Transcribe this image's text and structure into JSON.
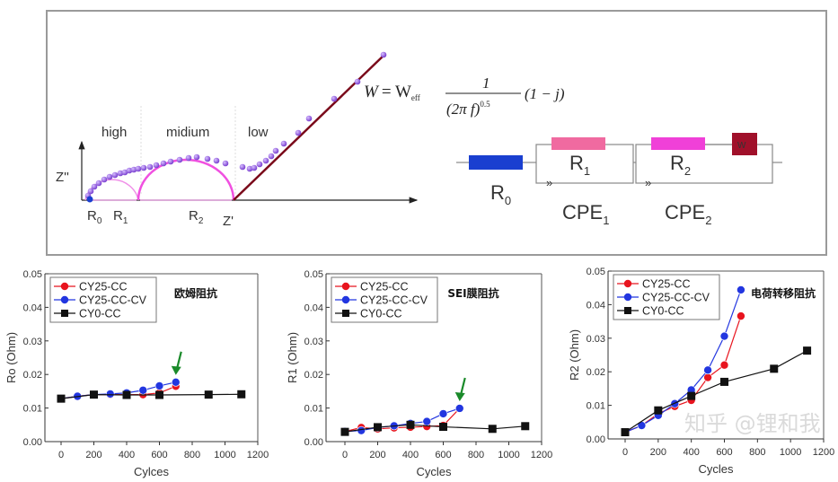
{
  "diagram": {
    "zone_labels": [
      "high",
      "midium",
      "low"
    ],
    "y_axis_label": "Z''",
    "x_axis_label": "Z'",
    "r0": "R",
    "r0_sub": "0",
    "r1": "R",
    "r1_sub": "1",
    "r2": "R",
    "r2_sub": "2",
    "formula": {
      "lhs": "W",
      "eq": "= W",
      "sub": "eff",
      "num": "1",
      "den": "(2π f)",
      "exp": "0.5",
      "tail": "(1 − j)"
    },
    "circuit": {
      "r0": "R",
      "r0_sub": "0",
      "r1": "R",
      "r1_sub": "1",
      "r2": "R",
      "r2_sub": "2",
      "w": "W",
      "cpe1": "CPE",
      "cpe1_sub": "1",
      "cpe2": "CPE",
      "cpe2_sub": "2",
      "colors": {
        "r0": "#1a3fd0",
        "r1": "#f06aa0",
        "r2": "#f040d8",
        "w": "#a0102a",
        "warburg_line": "#7a0a1a",
        "arc": "#f050e0",
        "dots": "#9a55e0"
      }
    },
    "watermark": "知乎 @锂和我"
  },
  "series_colors": {
    "CY25-CC": "#e8141e",
    "CY25-CC-CV": "#2236e0",
    "CY0-CC": "#111111"
  },
  "arrow_color": "#1a8a2a",
  "chart_data": [
    {
      "type": "line",
      "ylabel": "Ro (Ohm)",
      "xlabel": "Cylces",
      "annotation": "欧姆阻抗",
      "xlim": [
        0,
        1200
      ],
      "ylim": [
        0,
        0.05
      ],
      "xticks": [
        "0",
        "200",
        "400",
        "600",
        "800",
        "1000",
        "1200"
      ],
      "yticks": [
        "0.00",
        "0.01",
        "0.02",
        "0.03",
        "0.04",
        "0.05"
      ],
      "arrow_at": [
        700,
        0.0177
      ],
      "legend": "top-left",
      "series": [
        {
          "name": "CY25-CC",
          "marker": "circle",
          "x": [
            0,
            100,
            200,
            300,
            400,
            500,
            600,
            700
          ],
          "y": [
            0.0128,
            0.0135,
            0.014,
            0.014,
            0.014,
            0.014,
            0.0145,
            0.0165
          ]
        },
        {
          "name": "CY25-CC-CV",
          "marker": "circle",
          "x": [
            0,
            100,
            200,
            300,
            400,
            500,
            600,
            700
          ],
          "y": [
            0.0128,
            0.0135,
            0.014,
            0.0142,
            0.0145,
            0.0153,
            0.0166,
            0.0177
          ]
        },
        {
          "name": "CY0-CC",
          "marker": "square",
          "x": [
            0,
            200,
            400,
            600,
            900,
            1100
          ],
          "y": [
            0.0128,
            0.014,
            0.0139,
            0.0139,
            0.014,
            0.0141
          ]
        }
      ]
    },
    {
      "type": "line",
      "ylabel": "R1 (Ohm)",
      "xlabel": "Cycles",
      "annotation": "SEI膜阻抗",
      "xlim": [
        0,
        1200
      ],
      "ylim": [
        0,
        0.05
      ],
      "xticks": [
        "0",
        "200",
        "400",
        "600",
        "800",
        "1000",
        "1200"
      ],
      "yticks": [
        "0.00",
        "0.01",
        "0.02",
        "0.03",
        "0.04",
        "0.05"
      ],
      "arrow_at": [
        700,
        0.0099
      ],
      "legend": "top-left",
      "series": [
        {
          "name": "CY25-CC",
          "marker": "circle",
          "x": [
            0,
            100,
            200,
            300,
            400,
            500,
            600,
            700
          ],
          "y": [
            0.003,
            0.0042,
            0.0038,
            0.0041,
            0.0043,
            0.0045,
            0.0048,
            0.0099
          ]
        },
        {
          "name": "CY25-CC-CV",
          "marker": "circle",
          "x": [
            0,
            100,
            200,
            300,
            400,
            500,
            600,
            700
          ],
          "y": [
            0.003,
            0.0033,
            0.0042,
            0.0047,
            0.0054,
            0.006,
            0.0083,
            0.0099
          ]
        },
        {
          "name": "CY0-CC",
          "marker": "square",
          "x": [
            0,
            200,
            400,
            600,
            900,
            1100
          ],
          "y": [
            0.0029,
            0.0043,
            0.005,
            0.0044,
            0.0038,
            0.0046
          ]
        }
      ]
    },
    {
      "type": "line",
      "ylabel": "R2 (Ohm)",
      "xlabel": "Cycles",
      "annotation": "电荷转移阻抗",
      "xlim": [
        0,
        1200
      ],
      "ylim": [
        0,
        0.05
      ],
      "xticks": [
        "0",
        "200",
        "400",
        "600",
        "800",
        "1000",
        "1200"
      ],
      "yticks": [
        "0.00",
        "0.01",
        "0.02",
        "0.03",
        "0.04",
        "0.05"
      ],
      "legend": "top-left",
      "series": [
        {
          "name": "CY25-CC",
          "marker": "circle",
          "x": [
            0,
            100,
            200,
            300,
            400,
            500,
            600,
            700
          ],
          "y": [
            0.002,
            0.004,
            0.0075,
            0.0097,
            0.0115,
            0.0183,
            0.022,
            0.0366
          ]
        },
        {
          "name": "CY25-CC-CV",
          "marker": "circle",
          "x": [
            0,
            100,
            200,
            300,
            400,
            500,
            600,
            700
          ],
          "y": [
            0.002,
            0.004,
            0.007,
            0.0105,
            0.0146,
            0.0205,
            0.0306,
            0.0444
          ]
        },
        {
          "name": "CY0-CC",
          "marker": "square",
          "x": [
            0,
            200,
            400,
            600,
            900,
            1100
          ],
          "y": [
            0.002,
            0.0085,
            0.0128,
            0.017,
            0.0209,
            0.0263
          ]
        }
      ]
    }
  ]
}
